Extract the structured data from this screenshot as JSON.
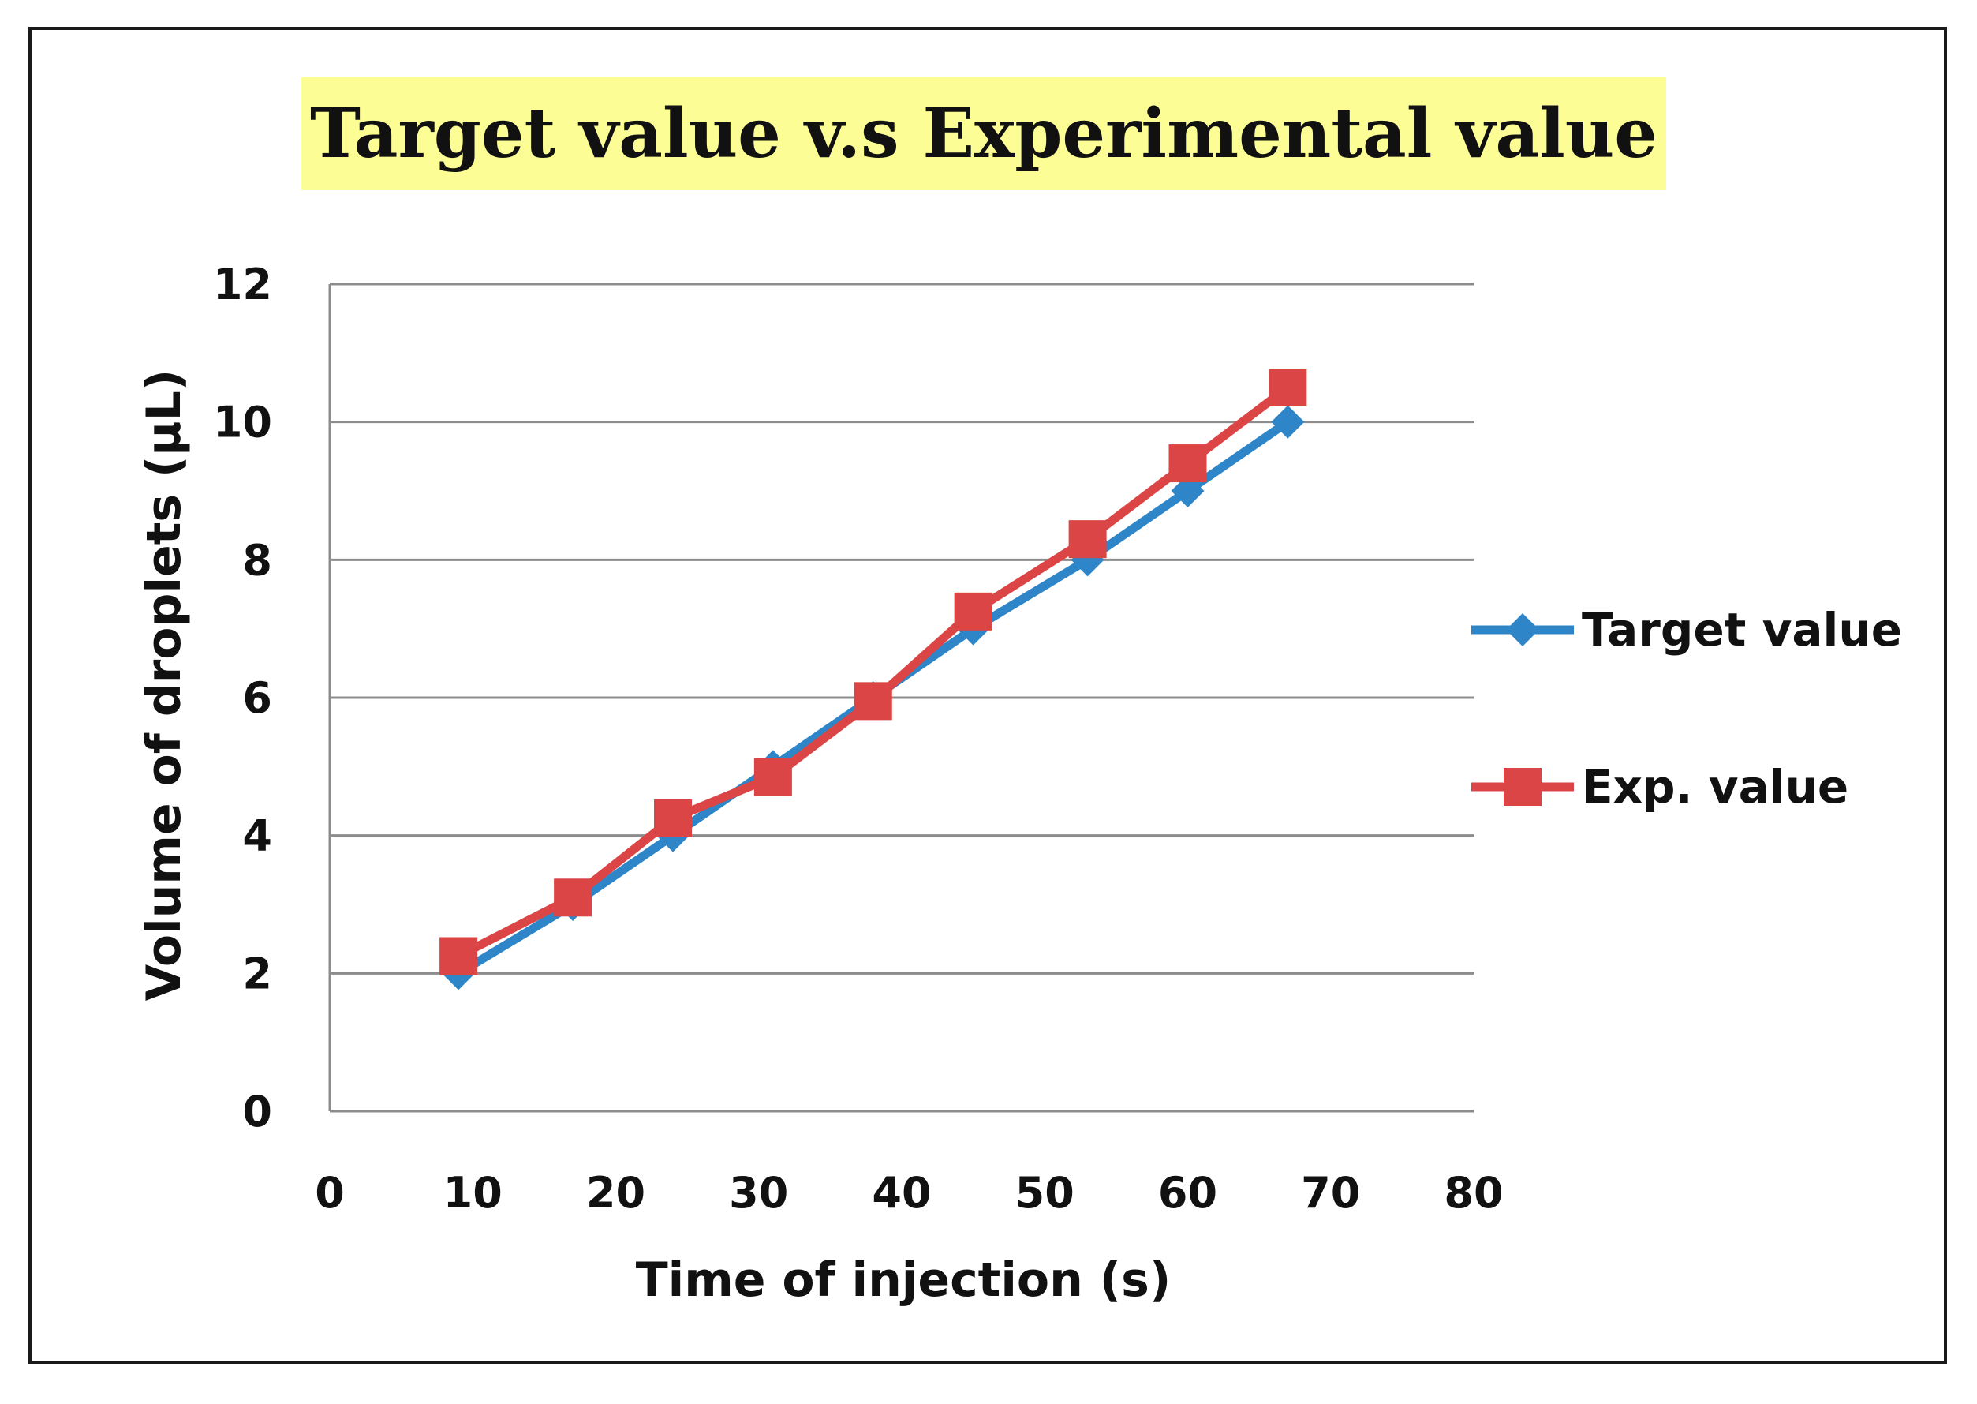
{
  "chart_data": {
    "type": "line",
    "title": "Target value v.s Experimental value",
    "xlabel": "Time of injection (s)",
    "ylabel": "Volume of droplets (µL)",
    "xlim": [
      0,
      80
    ],
    "ylim": [
      0,
      12
    ],
    "xticks": [
      0,
      10,
      20,
      30,
      40,
      50,
      60,
      70,
      80
    ],
    "yticks": [
      0,
      2,
      4,
      6,
      8,
      10,
      12
    ],
    "grid": true,
    "legend_position": "right",
    "x": [
      9,
      17,
      24,
      31,
      38,
      45,
      53,
      60,
      67
    ],
    "series": [
      {
        "name": "Target value",
        "color": "#2e86c8",
        "marker": "diamond",
        "values": [
          2,
          3,
          4,
          5,
          6,
          7,
          8,
          9,
          10
        ]
      },
      {
        "name": "Exp. value",
        "color": "#db4545",
        "marker": "square",
        "values": [
          2.25,
          3.1,
          4.25,
          4.85,
          5.95,
          7.25,
          8.3,
          9.4,
          10.5
        ]
      }
    ]
  }
}
